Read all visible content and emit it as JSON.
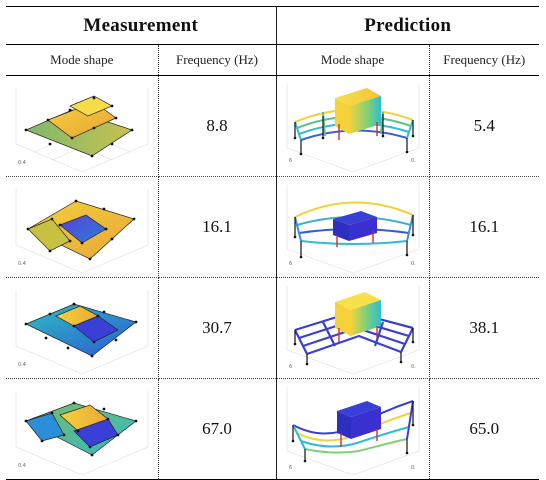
{
  "header": {
    "measurement": "Measurement",
    "prediction": "Prediction"
  },
  "columns": {
    "meas_shape": "Mode shape",
    "meas_freq": "Frequency (Hz)",
    "pred_shape": "Mode shape",
    "pred_freq": "Frequency (Hz)"
  },
  "rows": [
    {
      "measured_frequency": "8.8",
      "predicted_frequency": "5.4",
      "meas_tick": "0.4",
      "pred_tick_left": "6",
      "pred_tick_right": "0."
    },
    {
      "measured_frequency": "16.1",
      "predicted_frequency": "16.1",
      "meas_tick": "0.4",
      "pred_tick_left": "6",
      "pred_tick_right": "0."
    },
    {
      "measured_frequency": "30.7",
      "predicted_frequency": "38.1",
      "meas_tick": "0.4",
      "pred_tick_left": "6",
      "pred_tick_right": "0."
    },
    {
      "measured_frequency": "67.0",
      "predicted_frequency": "65.0",
      "meas_tick": "0.4",
      "pred_tick_left": "6",
      "pred_tick_right": "0."
    }
  ],
  "colors": {
    "yellow": "#f5d23a",
    "orange": "#e9a23a",
    "green": "#7fb96a",
    "blue": "#2a5bd6",
    "deep_blue": "#3a2fd0",
    "cyan": "#2fbcd4",
    "red_column": "#d42a2a"
  }
}
